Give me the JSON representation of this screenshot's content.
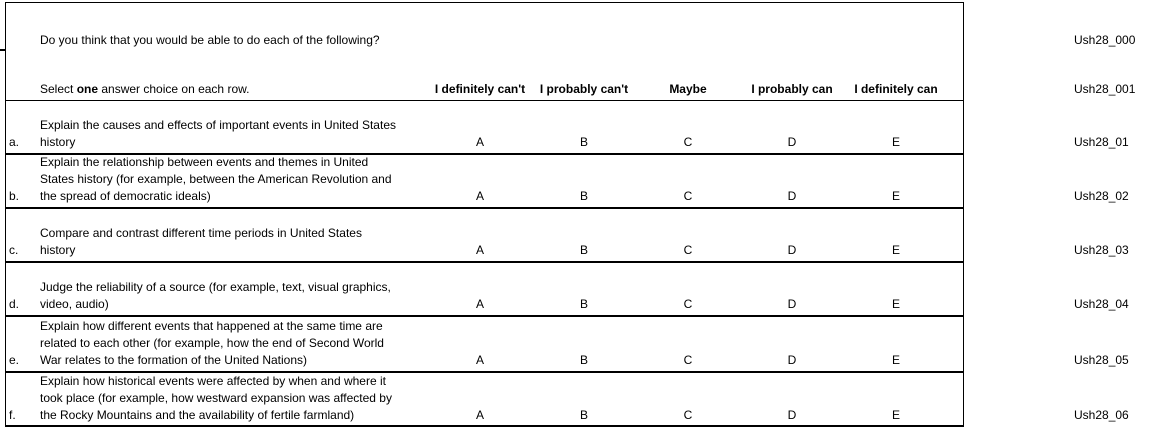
{
  "table": {
    "header": {
      "question": "Do you think that you would be able to do each of the following?",
      "question_code": "Ush28_000",
      "instruction_prefix": "Select ",
      "instruction_bold": "one",
      "instruction_suffix": " answer choice on each row.",
      "instruction_code": "Ush28_001",
      "columns": [
        "I definitely can't",
        "I probably can't",
        "Maybe",
        "I probably can",
        "I definitely can"
      ]
    },
    "rows": [
      {
        "letter": "a.",
        "text": "Explain the causes and effects of important events in United States\nhistory",
        "options": [
          "A",
          "B",
          "C",
          "D",
          "E"
        ],
        "code": "Ush28_01"
      },
      {
        "letter": "b.",
        "text": "Explain the relationship between events and themes in United\nStates history (for example, between the American Revolution and\nthe spread of democratic ideals)",
        "options": [
          "A",
          "B",
          "C",
          "D",
          "E"
        ],
        "code": "Ush28_02"
      },
      {
        "letter": "c.",
        "text": "Compare and contrast different time periods in United States\nhistory",
        "options": [
          "A",
          "B",
          "C",
          "D",
          "E"
        ],
        "code": "Ush28_03"
      },
      {
        "letter": "d.",
        "text": "Judge the reliability of a source (for example, text, visual graphics,\nvideo, audio)",
        "options": [
          "A",
          "B",
          "C",
          "D",
          "E"
        ],
        "code": "Ush28_04"
      },
      {
        "letter": "e.",
        "text": "Explain how different events that happened at the same time are\nrelated to each other (for example, how the end of Second World\nWar relates to the formation of the United Nations)",
        "options": [
          "A",
          "B",
          "C",
          "D",
          "E"
        ],
        "code": "Ush28_05"
      },
      {
        "letter": "f.",
        "text": "Explain how historical events were affected by when and where it\ntook place (for example, how westward expansion was affected by\nthe Rocky Mountains and the availability of fertile farmland)",
        "options": [
          "A",
          "B",
          "C",
          "D",
          "E"
        ],
        "code": "Ush28_06"
      }
    ]
  }
}
